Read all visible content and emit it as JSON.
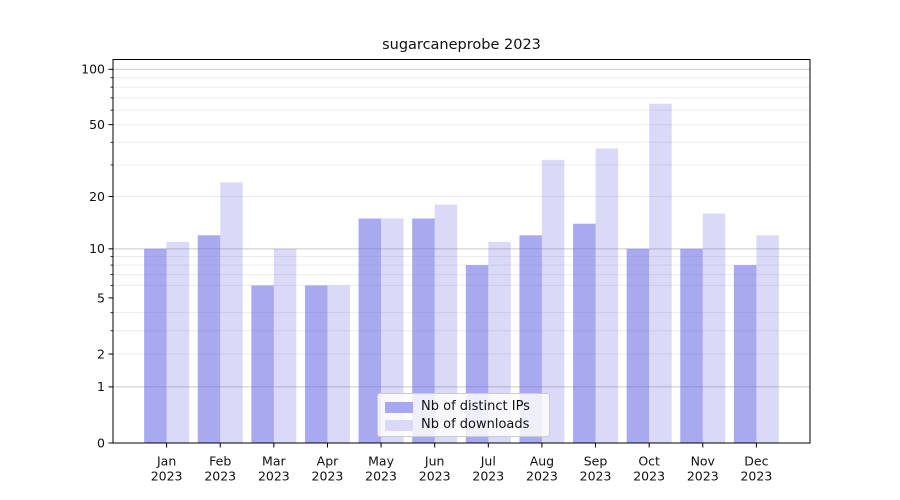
{
  "title": "sugarcaneprobe 2023",
  "chart_data": {
    "type": "bar",
    "title": "sugarcaneprobe 2023",
    "categories": [
      "Jan",
      "Feb",
      "Mar",
      "Apr",
      "May",
      "Jun",
      "Jul",
      "Aug",
      "Sep",
      "Oct",
      "Nov",
      "Dec"
    ],
    "x_year_label": "2023",
    "series": [
      {
        "name": "Nb of distinct IPs",
        "values": [
          10,
          12,
          6,
          6,
          15,
          15,
          8,
          12,
          14,
          10,
          10,
          8
        ],
        "color": "#6666e2",
        "opacity": 0.565,
        "effective_color": "#a8a8f1"
      },
      {
        "name": "Nb of downloads",
        "values": [
          11,
          24,
          10,
          6,
          15,
          18,
          11,
          32,
          37,
          65,
          16,
          12
        ],
        "color": "#6666e2",
        "opacity": 0.24,
        "effective_color": "#dadaf8"
      }
    ],
    "xlabel": "",
    "ylabel": "",
    "yscale": "log1p",
    "ylim": [
      0,
      113
    ],
    "ytick_values": [
      0,
      1,
      2,
      5,
      10,
      20,
      50,
      100
    ],
    "ytick_labels": [
      "0",
      "1",
      "2",
      "5",
      "10",
      "20",
      "50",
      "100"
    ],
    "y_major_grid": [
      1,
      10,
      100
    ],
    "y_minor_grid": [
      2,
      3,
      4,
      6,
      7,
      8,
      9,
      20,
      30,
      40,
      50,
      60,
      70,
      80,
      90
    ],
    "grid": "on",
    "legend_position": "lower center inside plot"
  },
  "colors": {
    "background": "#ffffff",
    "spine": "#000000",
    "major_grid": "#c9c9c9",
    "minor_grid": "#ececec",
    "text": "#111111",
    "bar_ips": "#a8a8f1",
    "bar_downloads": "#dadaf8"
  }
}
